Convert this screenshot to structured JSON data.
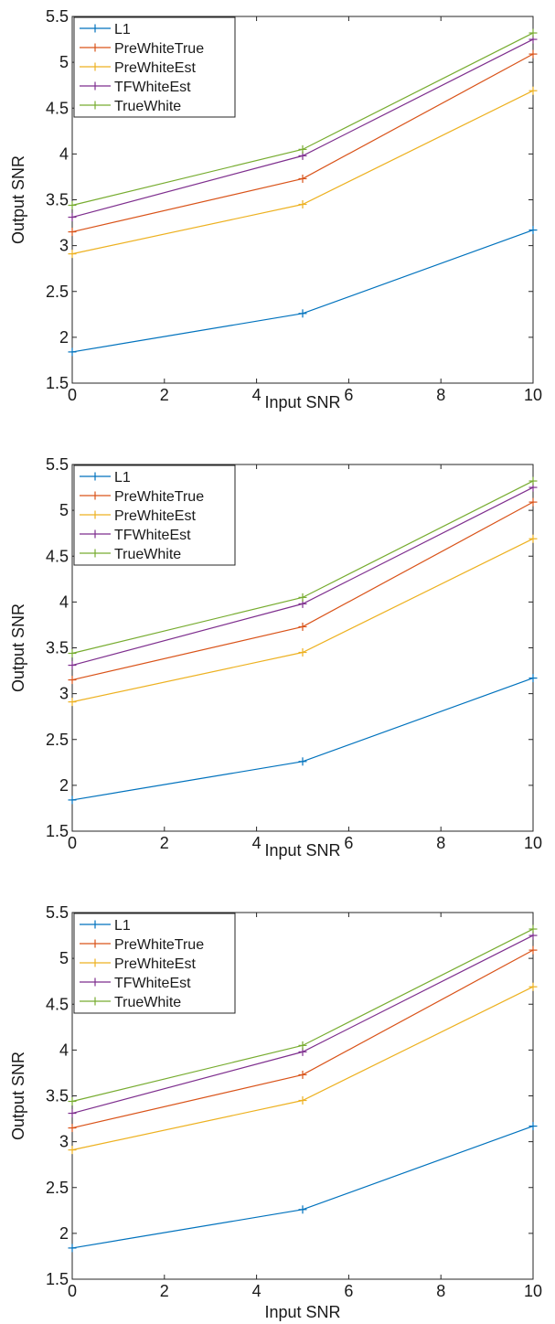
{
  "chart_data": [
    {
      "type": "line",
      "title": "",
      "xlabel": "Input SNR",
      "ylabel": "Output SNR",
      "xlim": [
        0,
        10
      ],
      "ylim": [
        1.5,
        5.5
      ],
      "xticks": [
        0,
        2,
        4,
        6,
        8,
        10
      ],
      "yticks": [
        1.5,
        2,
        2.5,
        3,
        3.5,
        4,
        4.5,
        5,
        5.5
      ],
      "grid": false,
      "legend": "top-left",
      "x": [
        0,
        5,
        10
      ],
      "series": [
        {
          "name": "L1",
          "color": "#0072bd",
          "values": [
            1.84,
            2.26,
            3.17
          ]
        },
        {
          "name": "PreWhiteTrue",
          "color": "#d95319",
          "values": [
            3.15,
            3.73,
            5.09
          ]
        },
        {
          "name": "PreWhiteEst",
          "color": "#edb120",
          "values": [
            2.91,
            3.45,
            4.69
          ]
        },
        {
          "name": "TFWhiteEst",
          "color": "#7e2f8e",
          "values": [
            3.31,
            3.98,
            5.25
          ]
        },
        {
          "name": "TrueWhite",
          "color": "#77ac30",
          "values": [
            3.44,
            4.05,
            5.32
          ]
        }
      ]
    },
    {
      "type": "line",
      "title": "",
      "xlabel": "Input SNR",
      "ylabel": "Output SNR",
      "xlim": [
        0,
        10
      ],
      "ylim": [
        1.5,
        5.5
      ],
      "xticks": [
        0,
        2,
        4,
        6,
        8,
        10
      ],
      "yticks": [
        1.5,
        2,
        2.5,
        3,
        3.5,
        4,
        4.5,
        5,
        5.5
      ],
      "grid": false,
      "legend": "top-left",
      "x": [
        0,
        5,
        10
      ],
      "series": [
        {
          "name": "L1",
          "color": "#0072bd",
          "values": [
            1.84,
            2.26,
            3.17
          ]
        },
        {
          "name": "PreWhiteTrue",
          "color": "#d95319",
          "values": [
            3.15,
            3.73,
            5.09
          ]
        },
        {
          "name": "PreWhiteEst",
          "color": "#edb120",
          "values": [
            2.91,
            3.45,
            4.69
          ]
        },
        {
          "name": "TFWhiteEst",
          "color": "#7e2f8e",
          "values": [
            3.31,
            3.98,
            5.25
          ]
        },
        {
          "name": "TrueWhite",
          "color": "#77ac30",
          "values": [
            3.44,
            4.05,
            5.32
          ]
        }
      ]
    },
    {
      "type": "line",
      "title": "",
      "xlabel": "Input SNR",
      "ylabel": "Output SNR",
      "xlim": [
        0,
        10
      ],
      "ylim": [
        1.5,
        5.5
      ],
      "xticks": [
        0,
        2,
        4,
        6,
        8,
        10
      ],
      "yticks": [
        1.5,
        2,
        2.5,
        3,
        3.5,
        4,
        4.5,
        5,
        5.5
      ],
      "grid": false,
      "legend": "top-left",
      "x": [
        0,
        5,
        10
      ],
      "series": [
        {
          "name": "L1",
          "color": "#0072bd",
          "values": [
            1.84,
            2.26,
            3.17
          ]
        },
        {
          "name": "PreWhiteTrue",
          "color": "#d95319",
          "values": [
            3.15,
            3.73,
            5.09
          ]
        },
        {
          "name": "PreWhiteEst",
          "color": "#edb120",
          "values": [
            2.91,
            3.45,
            4.69
          ]
        },
        {
          "name": "TFWhiteEst",
          "color": "#7e2f8e",
          "values": [
            3.31,
            3.98,
            5.25
          ]
        },
        {
          "name": "TrueWhite",
          "color": "#77ac30",
          "values": [
            3.44,
            4.05,
            5.32
          ]
        }
      ]
    }
  ]
}
